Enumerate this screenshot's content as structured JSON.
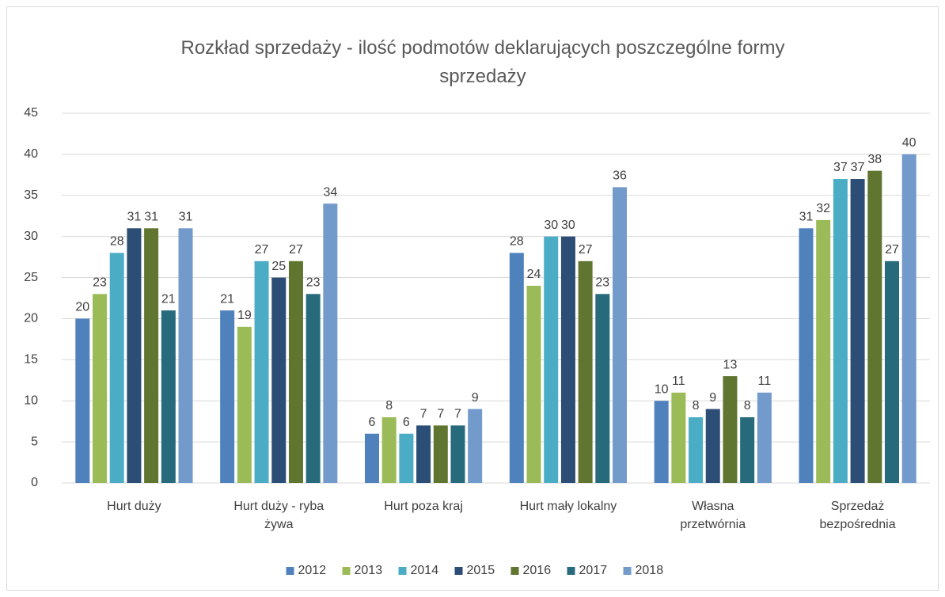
{
  "chart_data": {
    "type": "bar",
    "title": "Rozkład sprzedaży - ilość podmotów deklarujących poszczególne formy\nsprzedaży",
    "categories": [
      "Hurt duży",
      "Hurt duży - ryba\nżywa",
      "Hurt poza kraj",
      "Hurt mały lokalny",
      "Własna\nprzetwórnia",
      "Sprzedaż\nbezpośrednia"
    ],
    "series": [
      {
        "name": "2012",
        "color": "#4f81bd",
        "values": [
          20,
          21,
          6,
          28,
          10,
          31
        ]
      },
      {
        "name": "2013",
        "color": "#9bbb59",
        "values": [
          23,
          19,
          8,
          24,
          11,
          32
        ]
      },
      {
        "name": "2014",
        "color": "#4bacc6",
        "values": [
          28,
          27,
          6,
          30,
          8,
          37
        ]
      },
      {
        "name": "2015",
        "color": "#2c4d75",
        "values": [
          31,
          25,
          7,
          30,
          9,
          37
        ]
      },
      {
        "name": "2016",
        "color": "#5f7530",
        "values": [
          31,
          27,
          7,
          27,
          13,
          38
        ]
      },
      {
        "name": "2017",
        "color": "#276a7c",
        "values": [
          21,
          23,
          7,
          23,
          8,
          27
        ]
      },
      {
        "name": "2018",
        "color": "#729aca",
        "values": [
          31,
          34,
          9,
          36,
          11,
          40
        ]
      }
    ],
    "ylim": [
      0,
      45
    ],
    "yticks": [
      0,
      5,
      10,
      15,
      20,
      25,
      30,
      35,
      40,
      45
    ],
    "grid": true,
    "legend": "bottom"
  }
}
